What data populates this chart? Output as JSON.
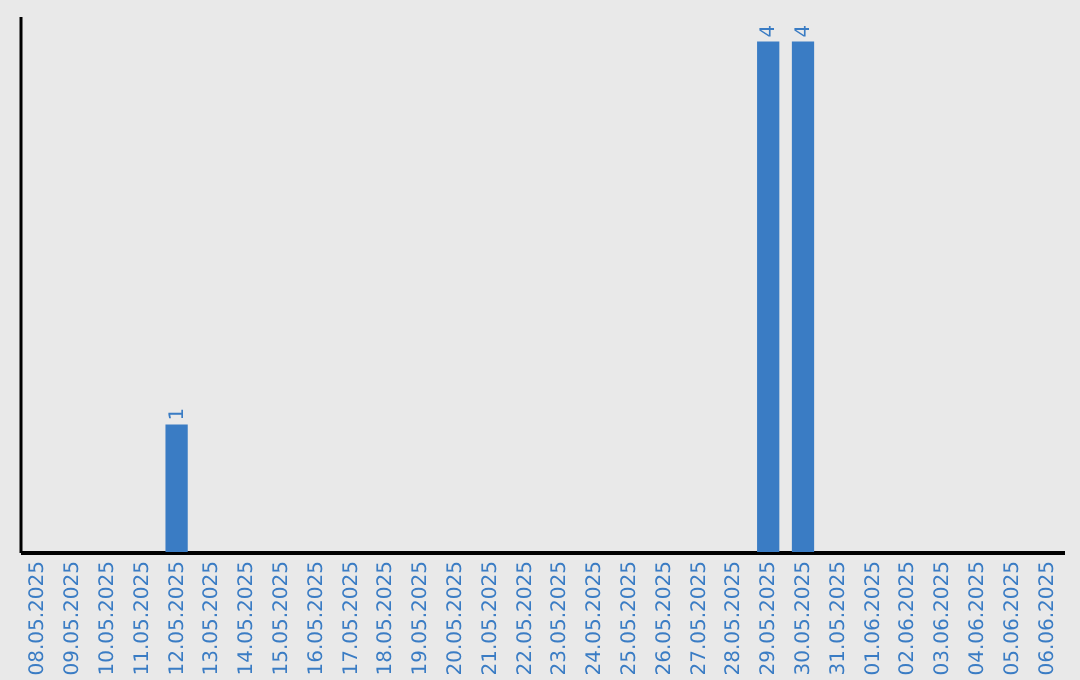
{
  "chart_data": {
    "type": "bar",
    "categories": [
      "08.05.2025",
      "09.05.2025",
      "10.05.2025",
      "11.05.2025",
      "12.05.2025",
      "13.05.2025",
      "14.05.2025",
      "15.05.2025",
      "16.05.2025",
      "17.05.2025",
      "18.05.2025",
      "19.05.2025",
      "20.05.2025",
      "21.05.2025",
      "22.05.2025",
      "23.05.2025",
      "24.05.2025",
      "25.05.2025",
      "26.05.2025",
      "27.05.2025",
      "28.05.2025",
      "29.05.2025",
      "30.05.2025",
      "31.05.2025",
      "01.06.2025",
      "02.06.2025",
      "03.06.2025",
      "04.06.2025",
      "05.06.2025",
      "06.06.2025"
    ],
    "values": [
      0,
      0,
      0,
      0,
      1,
      0,
      0,
      0,
      0,
      0,
      0,
      0,
      0,
      0,
      0,
      0,
      0,
      0,
      0,
      0,
      0,
      4,
      4,
      0,
      0,
      0,
      0,
      0,
      0,
      0
    ],
    "value_labels": [
      null,
      null,
      null,
      null,
      "1",
      null,
      null,
      null,
      null,
      null,
      null,
      null,
      null,
      null,
      null,
      null,
      null,
      null,
      null,
      null,
      null,
      "4",
      "4",
      null,
      null,
      null,
      null,
      null,
      null,
      null
    ],
    "color": "#3a7cc4",
    "ylim": [
      0,
      4.2
    ],
    "tick_labels": "x"
  }
}
